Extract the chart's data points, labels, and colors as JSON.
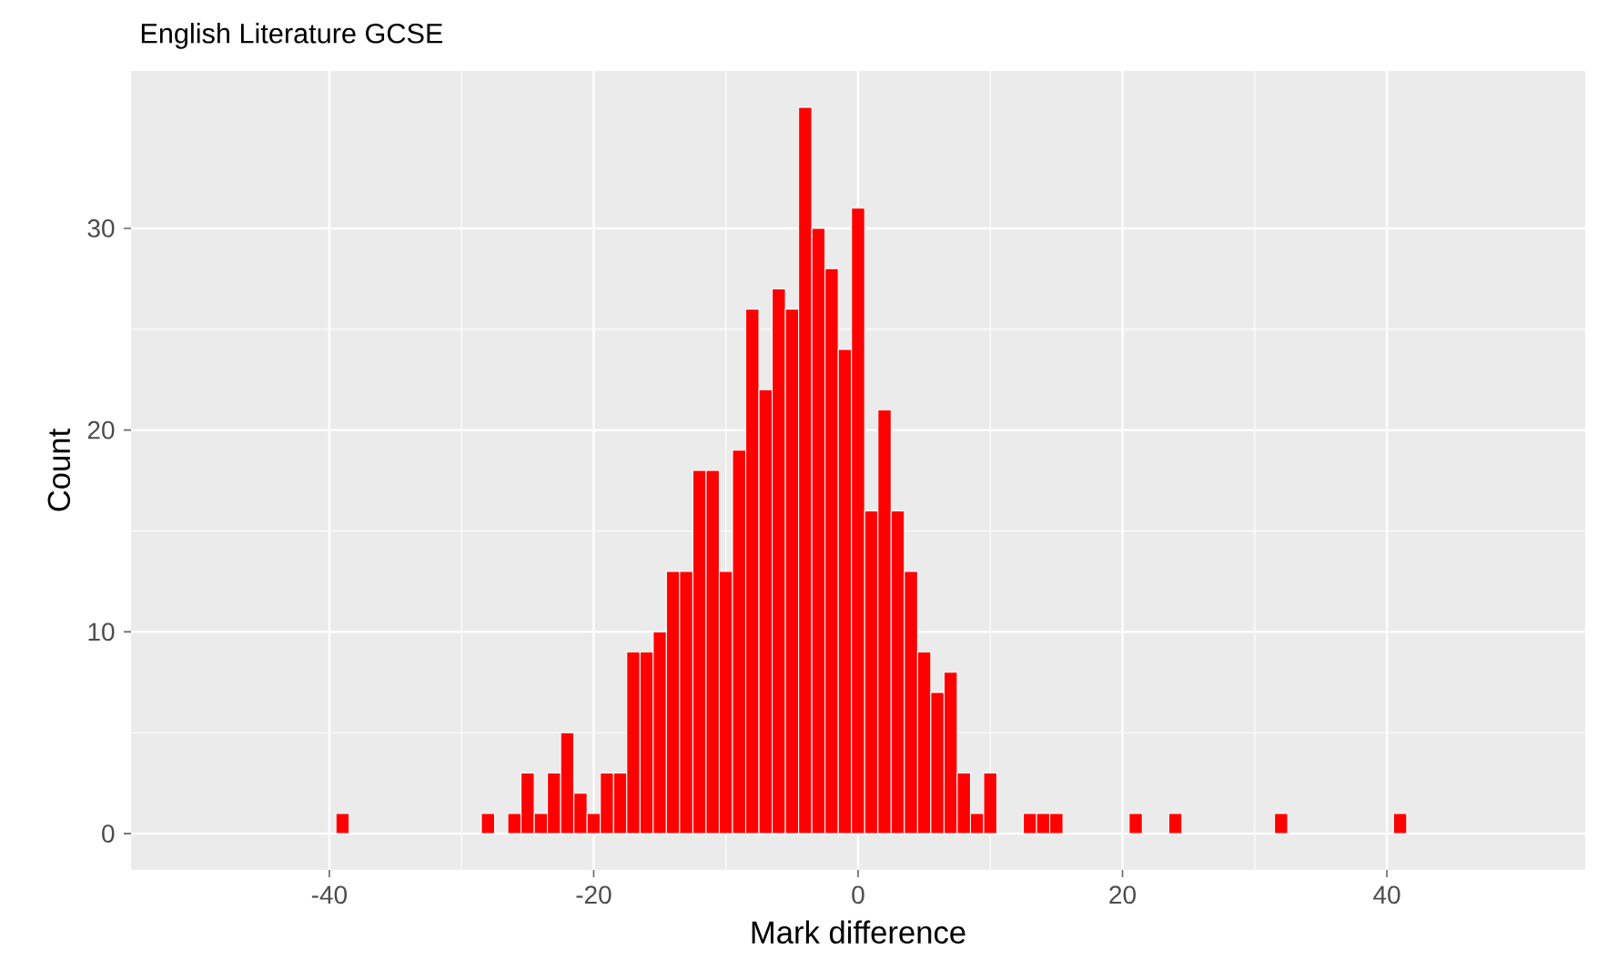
{
  "chart_data": {
    "type": "histogram",
    "title": "English Literature GCSE",
    "xlabel": "Mark difference",
    "ylabel": "Count",
    "bins": [
      -39.5,
      -38.5,
      -37.5,
      -36.5,
      -35.5,
      -34.5,
      -33.5,
      -32.5,
      -31.5,
      -30.5,
      -29.5,
      -28.5,
      -27.5,
      -26.5,
      -25.5,
      -24.5,
      -23.5,
      -22.5,
      -21.5,
      -20.5,
      -19.5,
      -18.5,
      -17.5,
      -16.5,
      -15.5,
      -14.5,
      -13.5,
      -12.5,
      -11.5,
      -10.5,
      -9.5,
      -8.5,
      -7.5,
      -6.5,
      -5.5,
      -4.5,
      -3.5,
      -2.5,
      -1.5,
      -0.5,
      0.5,
      1.5,
      2.5,
      3.5,
      4.5,
      5.5,
      6.5,
      7.5,
      8.5,
      9.5,
      10.5,
      11.5,
      12.5,
      13.5,
      14.5,
      15.5,
      16.5,
      17.5,
      18.5,
      19.5,
      20.5,
      21.5,
      22.5,
      23.5,
      24.5,
      25.5,
      26.5,
      27.5,
      28.5,
      29.5,
      30.5,
      31.5,
      32.5,
      33.5,
      34.5,
      35.5,
      36.5,
      37.5,
      38.5,
      39.5,
      40.5,
      41.5
    ],
    "values": [
      1,
      0,
      0,
      0,
      0,
      0,
      0,
      0,
      0,
      0,
      0,
      1,
      0,
      1,
      3,
      1,
      3,
      5,
      2,
      1,
      3,
      3,
      9,
      9,
      10,
      13,
      13,
      18,
      18,
      13,
      19,
      26,
      22,
      27,
      26,
      36,
      30,
      28,
      24,
      31,
      16,
      21,
      16,
      13,
      9,
      7,
      8,
      3,
      1,
      3,
      0,
      0,
      1,
      1,
      1,
      0,
      0,
      0,
      0,
      0,
      1,
      0,
      0,
      1,
      0,
      0,
      0,
      0,
      0,
      0,
      0,
      1,
      0,
      0,
      0,
      0,
      0,
      0,
      0,
      0,
      1
    ],
    "color": "#ff0000",
    "xlim": [
      -55,
      55
    ],
    "ylim": [
      -1.8,
      37.8
    ],
    "xticks": [
      -40,
      -20,
      0,
      20,
      40
    ],
    "yticks": [
      0,
      10,
      20,
      30
    ],
    "grid": true
  }
}
